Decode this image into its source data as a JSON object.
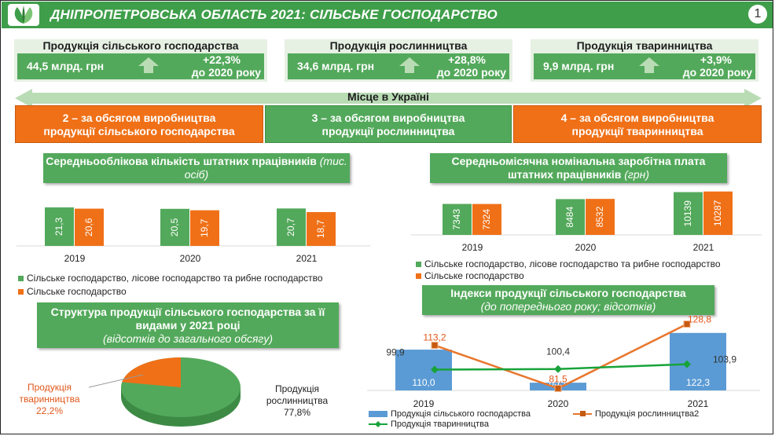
{
  "header": {
    "title": "ДНІПРОПЕТРОВСЬКА ОБЛАСТЬ 2021: СІЛЬСЬКЕ ГОСПОДАРСТВО",
    "page": "1"
  },
  "kpis": [
    {
      "title": "Продукція сільського господарства",
      "value": "44,5 млрд. грн",
      "pct": "+22,3%",
      "note": "до 2020 року"
    },
    {
      "title": "Продукція рослинництва",
      "value": "34,6 млрд. грн",
      "pct": "+28,8%",
      "note": "до 2020 року"
    },
    {
      "title": "Продукція тваринництва",
      "value": "9,9 млрд. грн",
      "pct": "+3,9%",
      "note": "до 2020 року"
    }
  ],
  "ranks": {
    "label": "Місце в Україні",
    "items": [
      {
        "line1": "2 – за обсягом виробництва",
        "line2": "продукції сільського господарства"
      },
      {
        "line1": "3 – за обсягом виробництва",
        "line2": "продукції рослинництва"
      },
      {
        "line1": "4 – за обсягом виробництва",
        "line2": "продукції тваринництва"
      }
    ]
  },
  "colors": {
    "green": "#53a95b",
    "orange": "#f07017",
    "blue": "#5b9bd5",
    "header": "#3f9e4a"
  },
  "chart_data": [
    {
      "type": "bar",
      "title": "Середньооблікова кількість штатних працівників",
      "unit": "(тис. осіб)",
      "categories": [
        "2019",
        "2020",
        "2021"
      ],
      "series": [
        {
          "name": "Сільське господарство, лісове господарство та рибне господарство",
          "values": [
            "21,3",
            "20,5",
            "20,7"
          ],
          "num": [
            21.3,
            20.5,
            20.7
          ]
        },
        {
          "name": "Сільське господарство",
          "values": [
            "20,6",
            "19,7",
            "18,7"
          ],
          "num": [
            20.6,
            19.7,
            18.7
          ]
        }
      ]
    },
    {
      "type": "bar",
      "title": "Середньомісячна номінальна заробітна плата штатних працівників",
      "unit": "(грн)",
      "categories": [
        "2019",
        "2020",
        "2021"
      ],
      "series": [
        {
          "name": "Сільське господарство, лісове господарство та рибне господарство",
          "values": [
            "7343",
            "8484",
            "10139"
          ],
          "num": [
            7343,
            8484,
            10139
          ]
        },
        {
          "name": "Сільське господарство",
          "values": [
            "7324",
            "8532",
            "10287"
          ],
          "num": [
            7324,
            8532,
            10287
          ]
        }
      ]
    },
    {
      "type": "pie",
      "title": "Структура продукції сільського господарства за її видами у 2021 році",
      "unit": "(відсотків до загального обсягу)",
      "slices": [
        {
          "label1": "Продукція",
          "label2": "тваринництва",
          "value": "22,2%",
          "num": 22.2
        },
        {
          "label1": "Продукція",
          "label2": "рослинництва",
          "value": "77,8%",
          "num": 77.8
        }
      ]
    },
    {
      "type": "bar",
      "title": "Індекси продукції сільського господарства",
      "unit": "(до попереднього року; відсотків)",
      "categories": [
        "2019",
        "2020",
        "2021"
      ],
      "series": [
        {
          "name": "Продукція сільського господарства",
          "values": [
            "110,0",
            "85,7",
            "122,3"
          ],
          "num": [
            110.0,
            85.7,
            122.3
          ]
        },
        {
          "name": "Продукція рослинництва2",
          "values": [
            "113,2",
            "81,5",
            "128,8"
          ],
          "num": [
            113.2,
            81.5,
            128.8
          ]
        },
        {
          "name": "Продукція тваринництва",
          "values": [
            "99,9",
            "100,4",
            "103,9"
          ],
          "num": [
            99.9,
            100.4,
            103.9
          ]
        }
      ]
    }
  ]
}
